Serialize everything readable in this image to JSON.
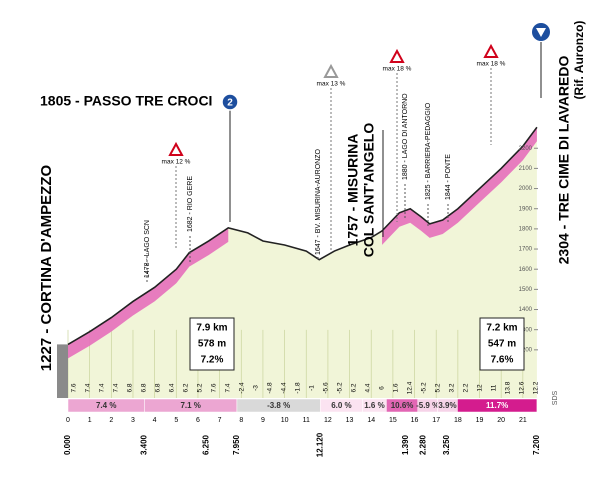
{
  "chart_data": {
    "type": "area",
    "x": [
      0,
      1,
      2,
      3,
      4,
      5,
      5.6,
      6.5,
      7.4,
      8.3,
      9,
      10,
      11,
      11.6,
      12.3,
      13,
      14,
      14.5,
      15.3,
      15.8,
      16.3,
      16.7,
      17.3,
      18,
      19,
      20,
      21,
      21.65
    ],
    "values": [
      1227,
      1290,
      1360,
      1440,
      1510,
      1600,
      1682,
      1740,
      1805,
      1780,
      1740,
      1720,
      1690,
      1647,
      1690,
      1720,
      1757,
      1790,
      1880,
      1900,
      1860,
      1825,
      1844,
      1900,
      2000,
      2100,
      2210,
      2304
    ],
    "xlim": [
      0,
      21.7
    ],
    "ylim": [
      1100,
      2350
    ],
    "xticks": [
      0,
      1,
      2,
      3,
      4,
      5,
      6,
      7,
      8,
      9,
      10,
      11,
      12,
      13,
      14,
      15,
      16,
      17,
      18,
      19,
      20,
      21
    ],
    "yticks": [
      1200,
      1300,
      1400,
      1500,
      1600,
      1700,
      1800,
      1900,
      2000,
      2100,
      2200
    ],
    "places": [
      "1227 - CORTINA D'AMPEZZO",
      "1805 - PASSO TRE CROCI",
      "1757 - MISURINA",
      "COL SANT'ANGELO",
      "2304 - TRE CIME DI LAVAREDO",
      "(Rif. Auronzo)"
    ],
    "points": [
      "1478 - LAGO SCN",
      "1682 - RIO GERE",
      "1647 - BV. MISURINA-AURONZO",
      "1880 - LAGO DI ANTORNO",
      "1825 - BARRIERA-PEDAGGIO",
      "1844 - PONTE"
    ],
    "max_gradients": [
      "max 12 %",
      "max 13 %",
      "max 18 %",
      "max 18 %"
    ],
    "climb_badge": "2",
    "climbs": [
      [
        "7.9 km",
        "578 m",
        "7.2%"
      ],
      [
        "7.2 km",
        "547 m",
        "7.6%"
      ]
    ],
    "segments": [
      {
        "label": "7.4 %",
        "color": "#eca6d2"
      },
      {
        "label": "7.1 %",
        "color": "#eca6d2"
      },
      {
        "label": "-3.8 %",
        "color": "#d9d9d9"
      },
      {
        "label": "6.0 %",
        "color": "#fbe3f1"
      },
      {
        "label": "1.6 %",
        "color": "#fbe3f1"
      },
      {
        "label": "10.6%",
        "color": "#e266b4"
      },
      {
        "label": "-5.9 %",
        "color": "#f6d3e8"
      },
      {
        "label": "3.9%",
        "color": "#f6d3e8"
      },
      {
        "label": "11.7%",
        "color": "#d41c8e"
      }
    ],
    "distances": [
      "0.000",
      "3.400",
      "6.250",
      "7.950",
      "12.120",
      "1.390",
      "2.280",
      "3.250",
      "7.200"
    ],
    "partial_gradients": [
      7.6,
      7.4,
      7.4,
      7.4,
      6.8,
      6.8,
      6.8,
      6.4,
      6.2,
      5.2,
      7.6,
      7.4,
      -2.4,
      -3.0,
      -4.8,
      -4.4,
      -1.8,
      -1.0,
      -5.6,
      -5.2,
      6.2,
      4.4,
      6.0,
      1.6,
      12.4,
      -5.2,
      5.2,
      3.2,
      2.2,
      12.0,
      11.0,
      13.8,
      12.6,
      12.2
    ],
    "credit": "SDS"
  }
}
